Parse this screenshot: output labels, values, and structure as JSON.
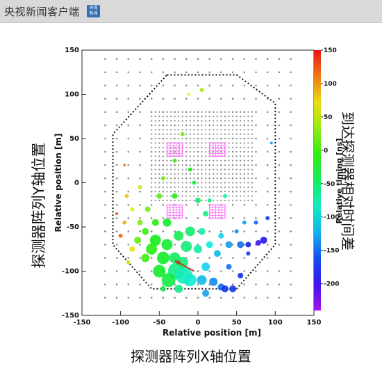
{
  "header": {
    "brand": "央视新闻客户端",
    "badge_line1": "央视",
    "badge_line2": "新闻"
  },
  "captions": {
    "y_axis_cn": "探测器阵列Y轴位置",
    "x_axis_cn": "探测器阵列X轴位置",
    "colorbar_cn": "到达探测器相对时间差"
  },
  "colors": {
    "pink_cluster": "#ff66ff",
    "arrow": "#c0392b",
    "boundary": "#111111",
    "grid_dot": "#8a8a8a"
  },
  "chart_data": {
    "type": "scatter",
    "xlabel": "Relative position [m]",
    "ylabel": "Relative position [m]",
    "zlabel": "Relative timing [ns]",
    "xlim": [
      -150,
      150
    ],
    "ylim": [
      -150,
      150
    ],
    "zlim": [
      -240,
      150
    ],
    "xticks": [
      -150,
      -100,
      -50,
      0,
      50,
      100,
      150
    ],
    "yticks": [
      -150,
      -100,
      -50,
      0,
      50,
      100,
      150
    ],
    "zticks": [
      150,
      100,
      50,
      0,
      -50,
      -100,
      -150,
      -200
    ],
    "grid": false,
    "boundary": [
      [
        -40,
        122
      ],
      [
        50,
        122
      ],
      [
        100,
        90
      ],
      [
        100,
        -70
      ],
      [
        50,
        -120
      ],
      [
        -60,
        -120
      ],
      [
        -110,
        -70
      ],
      [
        -110,
        55
      ]
    ],
    "inner_grid": {
      "x_from": -60,
      "x_to": 70,
      "y_from": -20,
      "y_to": 80,
      "step": 5
    },
    "outer_grid": {
      "x_from": -120,
      "x_to": 130,
      "y_from": -130,
      "y_to": 140,
      "step": 15
    },
    "pink_squares": [
      {
        "x_range": [
          -40,
          -20
        ],
        "y_range": [
          30,
          45
        ]
      },
      {
        "x_range": [
          15,
          35
        ],
        "y_range": [
          30,
          45
        ]
      },
      {
        "x_range": [
          -40,
          -20
        ],
        "y_range": [
          -40,
          -25
        ]
      },
      {
        "x_range": [
          15,
          35
        ],
        "y_range": [
          -40,
          -25
        ]
      }
    ],
    "hits": [
      {
        "x": -28,
        "y": -100,
        "t": -60,
        "size": 12
      },
      {
        "x": -18,
        "y": -105,
        "t": -80,
        "size": 12
      },
      {
        "x": -38,
        "y": -110,
        "t": -35,
        "size": 10
      },
      {
        "x": -10,
        "y": -110,
        "t": -90,
        "size": 9
      },
      {
        "x": -50,
        "y": -100,
        "t": -25,
        "size": 9
      },
      {
        "x": -45,
        "y": -85,
        "t": -25,
        "size": 9
      },
      {
        "x": -30,
        "y": -85,
        "t": -45,
        "size": 8
      },
      {
        "x": -20,
        "y": -90,
        "t": -55,
        "size": 8
      },
      {
        "x": -55,
        "y": -65,
        "t": -20,
        "size": 8
      },
      {
        "x": -60,
        "y": -75,
        "t": -10,
        "size": 8
      },
      {
        "x": -68,
        "y": -85,
        "t": 0,
        "size": 6
      },
      {
        "x": -40,
        "y": -70,
        "t": -30,
        "size": 8
      },
      {
        "x": -15,
        "y": -72,
        "t": -55,
        "size": 8
      },
      {
        "x": -25,
        "y": -60,
        "t": -40,
        "size": 7
      },
      {
        "x": -10,
        "y": -55,
        "t": -50,
        "size": 7
      },
      {
        "x": 0,
        "y": -75,
        "t": -75,
        "size": 6
      },
      {
        "x": 10,
        "y": -95,
        "t": -110,
        "size": 6
      },
      {
        "x": 5,
        "y": -110,
        "t": -120,
        "size": 7
      },
      {
        "x": 20,
        "y": -112,
        "t": -140,
        "size": 6
      },
      {
        "x": 30,
        "y": -118,
        "t": -150,
        "size": 5
      },
      {
        "x": 45,
        "y": -120,
        "t": -170,
        "size": 5
      },
      {
        "x": 55,
        "y": -105,
        "t": -175,
        "size": 4
      },
      {
        "x": 40,
        "y": -95,
        "t": -150,
        "size": 4
      },
      {
        "x": 25,
        "y": -80,
        "t": -120,
        "size": 5
      },
      {
        "x": 15,
        "y": -70,
        "t": -95,
        "size": 5
      },
      {
        "x": 40,
        "y": -70,
        "t": -130,
        "size": 5
      },
      {
        "x": 55,
        "y": -70,
        "t": -150,
        "size": 5
      },
      {
        "x": 65,
        "y": -70,
        "t": -180,
        "size": 4
      },
      {
        "x": 78,
        "y": -68,
        "t": -200,
        "size": 4
      },
      {
        "x": 30,
        "y": -60,
        "t": -110,
        "size": 4
      },
      {
        "x": 50,
        "y": -55,
        "t": -140,
        "size": 3
      },
      {
        "x": 65,
        "y": -80,
        "t": -170,
        "size": 3
      },
      {
        "x": 5,
        "y": -55,
        "t": -70,
        "size": 5
      },
      {
        "x": 10,
        "y": -35,
        "t": -60,
        "size": 4
      },
      {
        "x": 0,
        "y": -20,
        "t": -50,
        "size": 4
      },
      {
        "x": -5,
        "y": 0,
        "t": -30,
        "size": 3
      },
      {
        "x": -10,
        "y": 15,
        "t": -20,
        "size": 3
      },
      {
        "x": -40,
        "y": -45,
        "t": -25,
        "size": 6
      },
      {
        "x": -55,
        "y": -45,
        "t": -10,
        "size": 5
      },
      {
        "x": -68,
        "y": -55,
        "t": 0,
        "size": 5
      },
      {
        "x": -78,
        "y": -65,
        "t": 15,
        "size": 5
      },
      {
        "x": -75,
        "y": -45,
        "t": 25,
        "size": 4
      },
      {
        "x": -65,
        "y": -30,
        "t": 20,
        "size": 4
      },
      {
        "x": -85,
        "y": -30,
        "t": 60,
        "size": 3
      },
      {
        "x": -95,
        "y": -45,
        "t": 90,
        "size": 3
      },
      {
        "x": -92,
        "y": -15,
        "t": 80,
        "size": 3
      },
      {
        "x": -50,
        "y": -15,
        "t": 10,
        "size": 4
      },
      {
        "x": -30,
        "y": -15,
        "t": -10,
        "size": 4
      },
      {
        "x": -45,
        "y": 5,
        "t": 20,
        "size": 3
      },
      {
        "x": -75,
        "y": -5,
        "t": 50,
        "size": 3
      },
      {
        "x": -100,
        "y": -60,
        "t": 120,
        "size": 3
      },
      {
        "x": -105,
        "y": -35,
        "t": 130,
        "size": 2
      },
      {
        "x": -85,
        "y": -75,
        "t": 70,
        "size": 4
      },
      {
        "x": -90,
        "y": -90,
        "t": 55,
        "size": 3
      },
      {
        "x": -30,
        "y": 25,
        "t": 0,
        "size": 3
      },
      {
        "x": -20,
        "y": 55,
        "t": 20,
        "size": 3
      },
      {
        "x": 15,
        "y": -20,
        "t": -60,
        "size": 3
      },
      {
        "x": 35,
        "y": -15,
        "t": -80,
        "size": 3
      },
      {
        "x": 60,
        "y": -45,
        "t": -130,
        "size": 3
      },
      {
        "x": 75,
        "y": -45,
        "t": -155,
        "size": 3
      },
      {
        "x": 85,
        "y": -65,
        "t": -190,
        "size": 5
      },
      {
        "x": 90,
        "y": -40,
        "t": -165,
        "size": 3
      },
      {
        "x": 95,
        "y": 45,
        "t": -130,
        "size": 2
      },
      {
        "x": 5,
        "y": 105,
        "t": 40,
        "size": 3
      },
      {
        "x": -12,
        "y": 100,
        "t": 60,
        "size": 2
      },
      {
        "x": -95,
        "y": 20,
        "t": 110,
        "size": 2
      },
      {
        "x": -25,
        "y": -120,
        "t": -60,
        "size": 6
      },
      {
        "x": 10,
        "y": -125,
        "t": -130,
        "size": 5
      },
      {
        "x": 35,
        "y": -120,
        "t": -170,
        "size": 5
      },
      {
        "x": -45,
        "y": -120,
        "t": -40,
        "size": 4
      }
    ],
    "arrow": {
      "from": [
        -5,
        -100
      ],
      "to": [
        -30,
        -88
      ]
    }
  }
}
